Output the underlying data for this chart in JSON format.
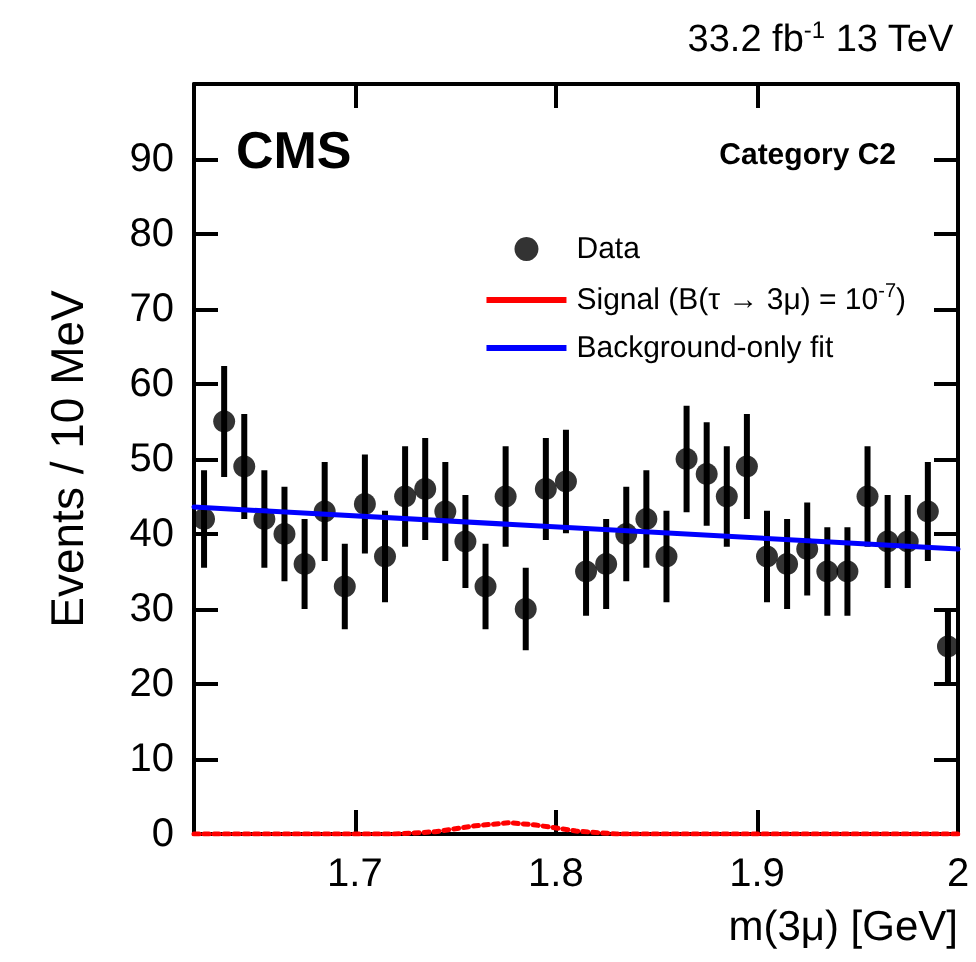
{
  "chart_data": {
    "type": "scatter",
    "title": "33.2 fb$^{-1}$ 13 TeV",
    "xlabel": "m(3μ) [GeV]",
    "ylabel": "Events / 10 MeV",
    "annotations": [
      "CMS",
      "Category C2"
    ],
    "xlim": [
      1.62,
      2.0
    ],
    "xticks": [
      1.7,
      1.8,
      1.9,
      2
    ],
    "ylim": [
      0,
      100
    ],
    "yticks": [
      0,
      10,
      20,
      30,
      40,
      50,
      60,
      70,
      80,
      90
    ],
    "grid": false,
    "legend": "top right",
    "series": [
      {
        "name": "Data",
        "color": "#000000",
        "marker": "circle",
        "x": [
          1.625,
          1.635,
          1.645,
          1.655,
          1.665,
          1.675,
          1.685,
          1.695,
          1.705,
          1.715,
          1.725,
          1.735,
          1.745,
          1.755,
          1.765,
          1.775,
          1.785,
          1.795,
          1.805,
          1.815,
          1.825,
          1.835,
          1.845,
          1.855,
          1.865,
          1.875,
          1.885,
          1.895,
          1.905,
          1.915,
          1.925,
          1.935,
          1.945,
          1.955,
          1.965,
          1.975,
          1.985,
          1.995
        ],
        "values": [
          42,
          55,
          49,
          42,
          40,
          36,
          43,
          33,
          44,
          37,
          45,
          46,
          43,
          39,
          33,
          45,
          30,
          46,
          47,
          35,
          36,
          40,
          42,
          37,
          50,
          48,
          45,
          49,
          37,
          36,
          38,
          35,
          35,
          45,
          39,
          39,
          43,
          25
        ],
        "errors": [
          6.5,
          7.4,
          7.0,
          6.5,
          6.3,
          6.0,
          6.6,
          5.7,
          6.6,
          6.1,
          6.7,
          6.8,
          6.6,
          6.2,
          5.7,
          6.7,
          5.5,
          6.8,
          6.9,
          5.9,
          6.0,
          6.3,
          6.5,
          6.1,
          7.1,
          6.9,
          6.7,
          7.0,
          6.1,
          6.0,
          6.2,
          5.9,
          5.9,
          6.7,
          6.2,
          6.2,
          6.6,
          5.0
        ]
      },
      {
        "name": "Signal (B(τ → 3μ) = 10$^{-7}$)",
        "type": "line",
        "color": "#ff0000",
        "line_style": "dotted",
        "marker": "none",
        "x": [
          1.62,
          1.72,
          1.74,
          1.76,
          1.777,
          1.79,
          1.81,
          1.83,
          2.0
        ],
        "values": [
          0,
          0,
          0.3,
          1.1,
          1.5,
          1.2,
          0.4,
          0,
          0
        ]
      },
      {
        "name": "Background-only fit",
        "type": "line",
        "color": "#0000ff",
        "line_style": "solid",
        "marker": "none",
        "x": [
          1.62,
          2.0
        ],
        "values": [
          43.6,
          38.0
        ]
      }
    ]
  }
}
